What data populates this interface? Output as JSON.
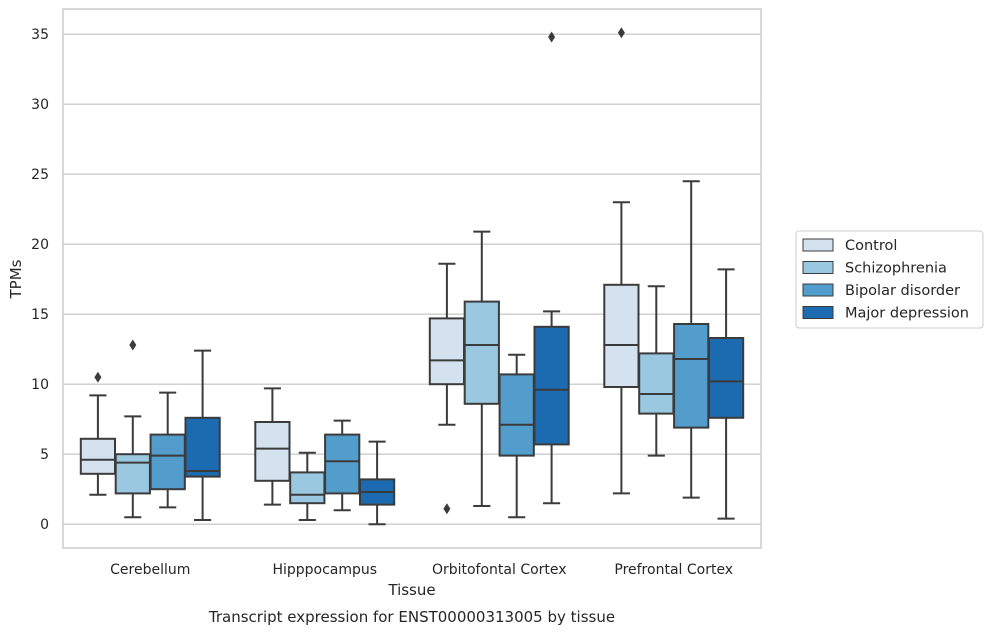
{
  "chart_data": {
    "type": "box",
    "xlabel": "Tissue",
    "ylabel": "TPMs",
    "caption": "Transcript expression for ENST00000313005 by tissue",
    "categories": [
      "Cerebellum",
      "Hipppocampus",
      "Orbitofontal Cortex",
      "Prefrontal Cortex"
    ],
    "ylim": [
      -1.7,
      36.8
    ],
    "yticks": [
      0,
      5,
      10,
      15,
      20,
      25,
      30,
      35
    ],
    "grid": "horizontal",
    "legend_position": "right",
    "series": [
      {
        "name": "Control",
        "color": "#d4e2f0",
        "boxes": [
          {
            "whisker_low": 2.1,
            "q1": 3.6,
            "median": 4.6,
            "q3": 6.1,
            "whisker_high": 9.2,
            "outliers": [
              10.5
            ]
          },
          {
            "whisker_low": 1.4,
            "q1": 3.1,
            "median": 5.4,
            "q3": 7.3,
            "whisker_high": 9.7,
            "outliers": []
          },
          {
            "whisker_low": 7.1,
            "q1": 10.0,
            "median": 11.7,
            "q3": 14.7,
            "whisker_high": 18.6,
            "outliers": [
              1.1
            ]
          },
          {
            "whisker_low": 2.2,
            "q1": 9.8,
            "median": 12.8,
            "q3": 17.1,
            "whisker_high": 23.0,
            "outliers": [
              35.1
            ]
          }
        ]
      },
      {
        "name": "Schizophrenia",
        "color": "#9ac8e0",
        "boxes": [
          {
            "whisker_low": 0.5,
            "q1": 2.2,
            "median": 4.4,
            "q3": 5.0,
            "whisker_high": 7.7,
            "outliers": [
              12.8
            ]
          },
          {
            "whisker_low": 0.3,
            "q1": 1.5,
            "median": 2.1,
            "q3": 3.7,
            "whisker_high": 5.1,
            "outliers": []
          },
          {
            "whisker_low": 1.3,
            "q1": 8.6,
            "median": 12.8,
            "q3": 15.9,
            "whisker_high": 20.9,
            "outliers": []
          },
          {
            "whisker_low": 4.9,
            "q1": 7.9,
            "median": 9.3,
            "q3": 12.2,
            "whisker_high": 17.0,
            "outliers": []
          }
        ]
      },
      {
        "name": "Bipolar disorder",
        "color": "#529dcc",
        "boxes": [
          {
            "whisker_low": 1.2,
            "q1": 2.5,
            "median": 4.9,
            "q3": 6.4,
            "whisker_high": 9.4,
            "outliers": []
          },
          {
            "whisker_low": 1.0,
            "q1": 2.2,
            "median": 4.5,
            "q3": 6.4,
            "whisker_high": 7.4,
            "outliers": []
          },
          {
            "whisker_low": 0.5,
            "q1": 4.9,
            "median": 7.1,
            "q3": 10.7,
            "whisker_high": 12.1,
            "outliers": []
          },
          {
            "whisker_low": 1.9,
            "q1": 6.9,
            "median": 11.8,
            "q3": 14.3,
            "whisker_high": 24.5,
            "outliers": []
          }
        ]
      },
      {
        "name": "Major depression",
        "color": "#1c6aaf",
        "boxes": [
          {
            "whisker_low": 0.3,
            "q1": 3.4,
            "median": 3.8,
            "q3": 7.6,
            "whisker_high": 12.4,
            "outliers": []
          },
          {
            "whisker_low": 0.0,
            "q1": 1.4,
            "median": 2.3,
            "q3": 3.2,
            "whisker_high": 5.9,
            "outliers": []
          },
          {
            "whisker_low": 1.5,
            "q1": 5.7,
            "median": 9.6,
            "q3": 14.1,
            "whisker_high": 15.2,
            "outliers": [
              34.8
            ]
          },
          {
            "whisker_low": 0.4,
            "q1": 7.6,
            "median": 10.2,
            "q3": 13.3,
            "whisker_high": 18.2,
            "outliers": []
          }
        ]
      }
    ]
  }
}
